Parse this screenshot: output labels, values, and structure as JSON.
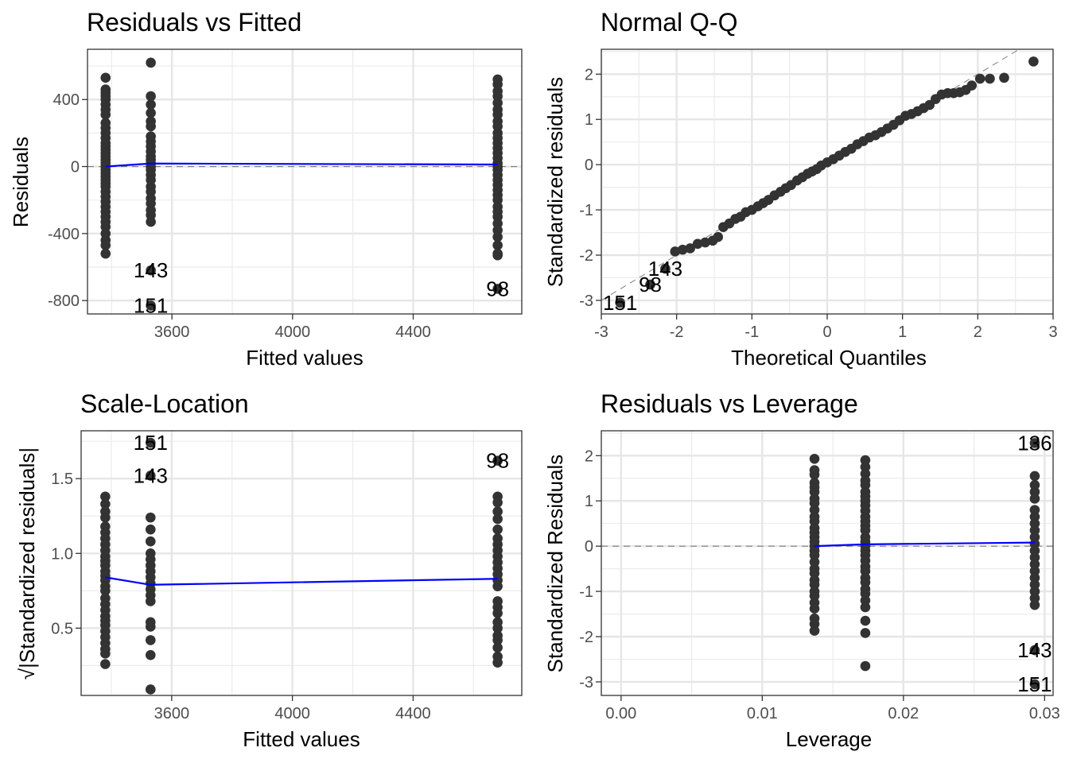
{
  "chart_data": [
    {
      "id": "resid-fitted",
      "type": "scatter",
      "title": "Residuals vs Fitted",
      "xlabel": "Fitted values",
      "ylabel": "Residuals",
      "xlim": [
        3320,
        4760
      ],
      "ylim": [
        -880,
        700
      ],
      "xticks": [
        3600,
        4000,
        4400
      ],
      "xtick_labels": [
        "3600",
        "4000",
        "4400"
      ],
      "yticks": [
        400,
        0,
        -400,
        -800
      ],
      "ytick_labels": [
        "400",
        "0",
        "-400",
        "-800"
      ],
      "grid": true,
      "reference_line": {
        "type": "hline",
        "y": 0,
        "style": "dashed"
      },
      "smooth_line": {
        "color": "#0000ff",
        "x": [
          3380,
          3530,
          4680
        ],
        "y": [
          0,
          18,
          12
        ]
      },
      "groups": [
        {
          "x": 3380,
          "y": [
            530,
            460,
            440,
            420,
            400,
            370,
            340,
            310,
            260,
            230,
            200,
            170,
            140,
            120,
            100,
            80,
            60,
            40,
            20,
            0,
            -20,
            -40,
            -60,
            -80,
            -100,
            -120,
            -150,
            -180,
            -210,
            -240,
            -270,
            -300,
            -330,
            -360,
            -400,
            -440,
            -470,
            -520
          ]
        },
        {
          "x": 3530,
          "y": [
            620,
            420,
            370,
            320,
            270,
            240,
            180,
            150,
            120,
            90,
            60,
            40,
            20,
            0,
            -20,
            -50,
            -80,
            -120,
            -150,
            -190,
            -220,
            -260,
            -290,
            -330,
            -620,
            -830
          ]
        },
        {
          "x": 4680,
          "y": [
            520,
            490,
            450,
            420,
            380,
            340,
            310,
            270,
            240,
            200,
            170,
            140,
            110,
            80,
            50,
            20,
            0,
            -20,
            -50,
            -80,
            -110,
            -140,
            -170,
            -200,
            -240,
            -270,
            -300,
            -340,
            -380,
            -420,
            -470,
            -520,
            -530,
            -730
          ]
        }
      ],
      "point_labels": [
        {
          "text": "143",
          "x": 3530,
          "y": -620
        },
        {
          "text": "151",
          "x": 3530,
          "y": -830
        },
        {
          "text": "98",
          "x": 4680,
          "y": -730
        }
      ]
    },
    {
      "id": "normal-qq",
      "type": "scatter",
      "title": "Normal Q-Q",
      "xlabel": "Theoretical Quantiles",
      "ylabel": "Standardized residuals",
      "xlim": [
        -3,
        3
      ],
      "ylim": [
        -3.3,
        2.55
      ],
      "xticks": [
        -3,
        -2,
        -1,
        0,
        1,
        2,
        3
      ],
      "xtick_labels": [
        "-3",
        "-2",
        "-1",
        "0",
        "1",
        "2",
        "3"
      ],
      "yticks": [
        2,
        1,
        0,
        -1,
        -2,
        -3
      ],
      "ytick_labels": [
        "2",
        "1",
        "0",
        "-1",
        "-2",
        "-3"
      ],
      "grid": true,
      "reference_line": {
        "type": "abline",
        "intercept": 0,
        "slope": 1,
        "style": "dashed"
      },
      "points": {
        "x": [
          -2.75,
          -2.35,
          -2.15,
          -2.02,
          -1.92,
          -1.82,
          -1.72,
          -1.62,
          -1.52,
          -1.45,
          -1.38,
          -1.3,
          -1.22,
          -1.15,
          -1.08,
          -1.0,
          -0.92,
          -0.85,
          -0.78,
          -0.7,
          -0.62,
          -0.55,
          -0.48,
          -0.4,
          -0.33,
          -0.26,
          -0.2,
          -0.14,
          -0.08,
          0.0,
          0.08,
          0.16,
          0.24,
          0.32,
          0.4,
          0.48,
          0.56,
          0.64,
          0.72,
          0.8,
          0.88,
          0.96,
          1.04,
          1.12,
          1.2,
          1.28,
          1.36,
          1.44,
          1.52,
          1.6,
          1.68,
          1.76,
          1.84,
          1.92,
          2.03,
          2.16,
          2.35,
          2.74
        ],
        "y": [
          -3.05,
          -2.65,
          -2.3,
          -1.92,
          -1.88,
          -1.85,
          -1.75,
          -1.72,
          -1.68,
          -1.6,
          -1.38,
          -1.3,
          -1.2,
          -1.15,
          -1.05,
          -1.0,
          -0.92,
          -0.85,
          -0.78,
          -0.68,
          -0.6,
          -0.52,
          -0.45,
          -0.35,
          -0.28,
          -0.2,
          -0.15,
          -0.1,
          -0.02,
          0.05,
          0.12,
          0.2,
          0.28,
          0.35,
          0.45,
          0.52,
          0.6,
          0.65,
          0.72,
          0.8,
          0.88,
          0.98,
          1.08,
          1.12,
          1.18,
          1.25,
          1.32,
          1.45,
          1.55,
          1.58,
          1.58,
          1.6,
          1.65,
          1.75,
          1.9,
          1.9,
          1.92,
          2.28
        ]
      },
      "point_labels": [
        {
          "text": "151",
          "x": -2.75,
          "y": -3.05
        },
        {
          "text": "98",
          "x": -2.35,
          "y": -2.65
        },
        {
          "text": "143",
          "x": -2.15,
          "y": -2.3
        }
      ]
    },
    {
      "id": "scale-location",
      "type": "scatter",
      "title": "Scale-Location",
      "xlabel": "Fitted values",
      "ylabel": "√|Standardized residuals|",
      "xlim": [
        3300,
        4760
      ],
      "ylim": [
        0.05,
        1.82
      ],
      "xticks": [
        3600,
        4000,
        4400
      ],
      "xtick_labels": [
        "3600",
        "4000",
        "4400"
      ],
      "yticks": [
        1.5,
        1.0,
        0.5
      ],
      "ytick_labels": [
        "1.5",
        "1.0",
        "0.5"
      ],
      "grid": true,
      "smooth_line": {
        "color": "#0000ff",
        "x": [
          3380,
          3530,
          4680
        ],
        "y": [
          0.84,
          0.79,
          0.83
        ]
      },
      "groups": [
        {
          "x": 3380,
          "y": [
            1.38,
            1.33,
            1.28,
            1.24,
            1.18,
            1.14,
            1.1,
            1.06,
            1.02,
            0.98,
            0.95,
            0.92,
            0.88,
            0.85,
            0.82,
            0.78,
            0.75,
            0.7,
            0.66,
            0.62,
            0.58,
            0.55,
            0.52,
            0.48,
            0.44,
            0.4,
            0.36,
            0.33,
            0.26
          ]
        },
        {
          "x": 3530,
          "y": [
            1.74,
            1.52,
            1.24,
            1.16,
            1.08,
            1.0,
            0.96,
            0.92,
            0.88,
            0.84,
            0.8,
            0.76,
            0.72,
            0.68,
            0.54,
            0.51,
            0.42,
            0.32,
            0.09
          ]
        },
        {
          "x": 4680,
          "y": [
            1.62,
            1.38,
            1.34,
            1.28,
            1.23,
            1.16,
            1.1,
            1.06,
            1.02,
            0.98,
            0.94,
            0.9,
            0.86,
            0.82,
            0.78,
            0.68,
            0.64,
            0.6,
            0.54,
            0.5,
            0.45,
            0.42,
            0.37,
            0.31,
            0.27
          ]
        }
      ],
      "point_labels": [
        {
          "text": "151",
          "x": 3530,
          "y": 1.74
        },
        {
          "text": "143",
          "x": 3530,
          "y": 1.52
        },
        {
          "text": "98",
          "x": 4680,
          "y": 1.62
        }
      ]
    },
    {
      "id": "resid-leverage",
      "type": "scatter",
      "title": "Residuals vs Leverage",
      "xlabel": "Leverage",
      "ylabel": "Standardized Residuals",
      "xlim": [
        -0.0014,
        0.0306
      ],
      "ylim": [
        -3.3,
        2.55
      ],
      "xticks": [
        0.0,
        0.01,
        0.02,
        0.03
      ],
      "xtick_labels": [
        "0.00",
        "0.01",
        "0.02",
        "0.03"
      ],
      "yticks": [
        2,
        1,
        0,
        -1,
        -2,
        -3
      ],
      "ytick_labels": [
        "2",
        "1",
        "0",
        "-1",
        "-2",
        "-3"
      ],
      "grid": true,
      "reference_line": {
        "type": "hline",
        "y": 0,
        "style": "dashed"
      },
      "smooth_line": {
        "color": "#0000ff",
        "x": [
          0.0137,
          0.0173,
          0.0293
        ],
        "y": [
          0.0,
          0.04,
          0.08
        ]
      },
      "groups": [
        {
          "x": 0.0137,
          "y": [
            1.93,
            1.68,
            1.58,
            1.4,
            1.3,
            1.2,
            1.05,
            0.95,
            0.8,
            0.65,
            0.55,
            0.4,
            0.3,
            0.2,
            0.1,
            0.0,
            -0.1,
            -0.2,
            -0.35,
            -0.5,
            -0.6,
            -0.75,
            -0.85,
            -1.0,
            -1.1,
            -1.25,
            -1.38,
            -1.6,
            -1.72,
            -1.87
          ]
        },
        {
          "x": 0.0173,
          "y": [
            1.9,
            1.75,
            1.6,
            1.45,
            1.35,
            1.2,
            1.1,
            1.0,
            0.9,
            0.78,
            0.65,
            0.55,
            0.45,
            0.35,
            0.2,
            0.1,
            0.0,
            -0.1,
            -0.2,
            -0.32,
            -0.45,
            -0.55,
            -0.7,
            -0.8,
            -0.95,
            -1.05,
            -1.2,
            -1.35,
            -1.65,
            -1.92,
            -2.65
          ]
        },
        {
          "x": 0.0293,
          "y": [
            2.28,
            1.55,
            1.35,
            1.2,
            1.05,
            0.8,
            0.65,
            0.5,
            0.35,
            0.2,
            0.05,
            -0.1,
            -0.25,
            -0.4,
            -0.55,
            -0.7,
            -0.85,
            -1.0,
            -1.15,
            -1.3,
            -2.3,
            -3.05
          ]
        }
      ],
      "point_labels": [
        {
          "text": "136",
          "x": 0.0293,
          "y": 2.28
        },
        {
          "text": "143",
          "x": 0.0293,
          "y": -2.3
        },
        {
          "text": "151",
          "x": 0.0293,
          "y": -3.05
        }
      ]
    }
  ]
}
